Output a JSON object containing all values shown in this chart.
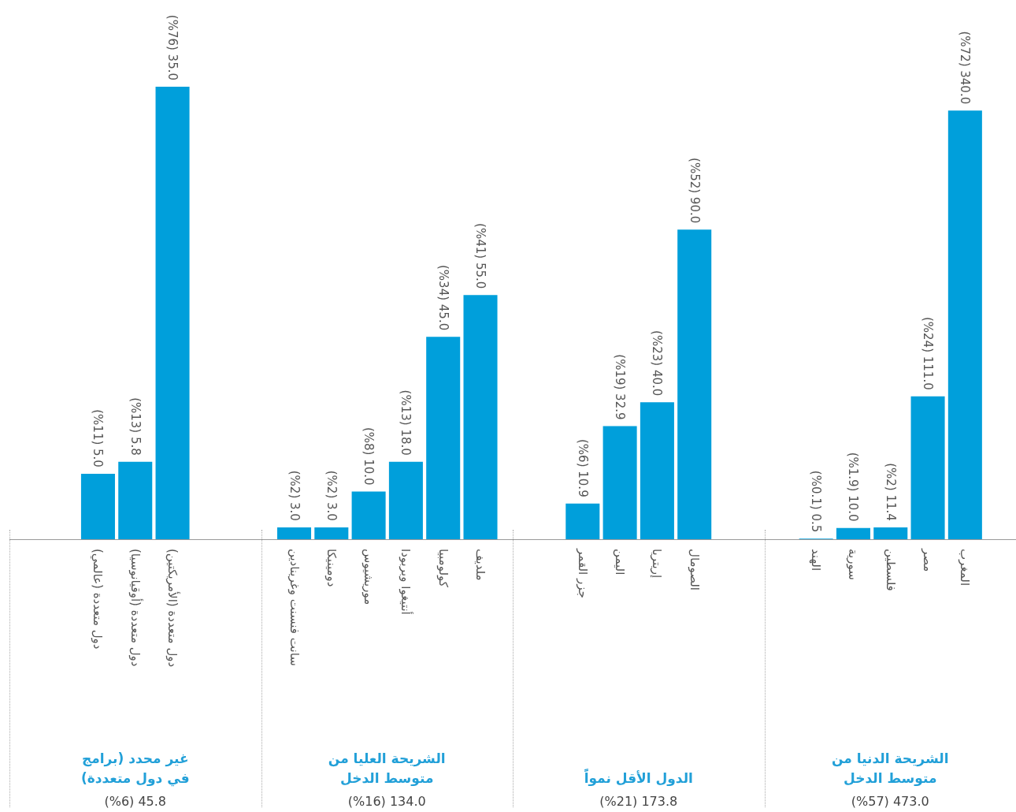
{
  "chart_data": [
    {
      "type": "bar",
      "title": "الشريحة الدنيا من متوسط الدخل",
      "subtitle": "473.0 (%57)",
      "categories": [
        "الهند",
        "سورية",
        "فلسطين",
        "مصر",
        "المغرب"
      ],
      "values": [
        0.1,
        1.9,
        2,
        24,
        72
      ],
      "value_labels": [
        "0.5 (%0.1)",
        "10.0 (%1.9)",
        "11.4 (%2)",
        "111.0 (%24)",
        "340.0 (%72)"
      ],
      "color": "#009fdb",
      "tick_labels": "x"
    },
    {
      "type": "bar",
      "title": "الدول الأقل نمواً",
      "subtitle": "173.8 (%21)",
      "categories": [
        "جزر القمر",
        "اليمن",
        "إريتريا",
        "الصومال"
      ],
      "values": [
        6,
        19,
        23,
        52
      ],
      "value_labels": [
        "10.9 (%6)",
        "32.9 (%19)",
        "40.0 (%23)",
        "90.0 (%52)"
      ],
      "color": "#009fdb",
      "tick_labels": "x"
    },
    {
      "type": "bar",
      "title": "الشريحة العليا من متوسط الدخل",
      "subtitle": "134.0 (%16)",
      "categories": [
        "سانت فنسنت وغرينادين",
        "دومينيكا",
        "موريشيوس",
        "أنتيغوا وبربودا",
        "كولومبيا",
        "ملديف"
      ],
      "values": [
        2,
        2,
        8,
        13,
        34,
        41
      ],
      "value_labels": [
        "3.0 (%2)",
        "3.0 (%2)",
        "10.0 (%8)",
        "18.0 (%13)",
        "45.0 (%34)",
        "55.0 (%41)"
      ],
      "color": "#009fdb",
      "tick_labels": "x"
    },
    {
      "type": "bar",
      "title": "غير محدد (برامج في دول متعددة)",
      "subtitle": "45.8 (%6)",
      "categories": [
        "دول متعددة (عالمي)",
        "دول متعددة (أوقيانوسيا)",
        "دول متعددة (الأمريكتين)"
      ],
      "values": [
        11,
        13,
        76
      ],
      "value_labels": [
        "5.0 (%11)",
        "5.8 (%13)",
        "35.0 (%76)"
      ],
      "color": "#009fdb",
      "tick_labels": "x"
    }
  ]
}
